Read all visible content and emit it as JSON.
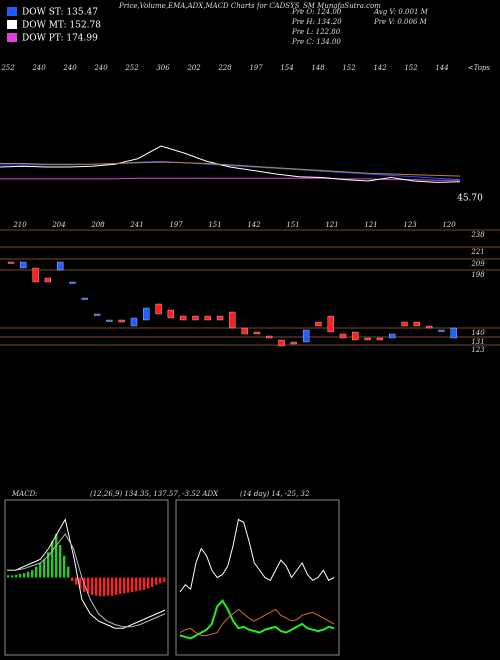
{
  "title": "Price,Volume,EMA,ADX,MACD Charts for CADSYS_SM MunafaSutra.com",
  "legend": [
    {
      "label": "DOW ST: 135.47",
      "color": "#1e5cff"
    },
    {
      "label": "DOW MT: 152.78",
      "color": "#ffffff"
    },
    {
      "label": "DOW PT: 174.99",
      "color": "#e040e0"
    }
  ],
  "info": [
    "Pre  O: 124.00",
    "Pre  H: 134.20",
    "Pre  L: 122.80",
    "Pre  C: 134.00"
  ],
  "info2": [
    "Avg V: 0.001 M",
    "Pre  V: 0.006 M"
  ],
  "chart_data": [
    {
      "type": "candlestick",
      "tops": [
        252,
        240,
        240,
        240,
        252,
        306,
        202,
        228,
        197,
        154,
        148,
        152,
        142,
        152,
        144
      ],
      "tops_label": "<Tops",
      "bottoms": [
        210,
        204,
        208,
        241,
        197,
        151,
        142,
        151,
        121,
        121,
        123,
        120
      ],
      "ylim": [
        98,
        243
      ],
      "yticks": [
        238,
        221,
        209,
        198,
        140,
        131,
        123
      ],
      "up_color": "#2060ff",
      "down_color": "#ff2020",
      "level_color": "#7a4a2a",
      "open": [
        206,
        200,
        200,
        190,
        198,
        186,
        170,
        154,
        148,
        148,
        142,
        148,
        164,
        158,
        152,
        152,
        152,
        152,
        156,
        140,
        136,
        132,
        128,
        126,
        126,
        146,
        152,
        134,
        136,
        130,
        130,
        130,
        146,
        146,
        142,
        138,
        130
      ],
      "close": [
        205,
        206,
        186,
        186,
        206,
        186,
        170,
        154,
        148,
        146,
        150,
        160,
        154,
        150,
        148,
        148,
        148,
        148,
        140,
        134,
        134,
        130,
        122,
        124,
        138,
        142,
        136,
        130,
        128,
        128,
        128,
        134,
        142,
        142,
        140,
        138,
        140
      ]
    },
    {
      "type": "line",
      "annotation": "45.70",
      "ylim": [
        0,
        100
      ],
      "series": [
        {
          "name": "ema-short",
          "color": "#2050ff",
          "values": [
            43,
            43,
            43,
            43,
            44,
            45,
            47,
            48,
            46,
            44,
            42,
            40,
            38,
            36,
            34,
            32,
            30,
            28,
            26,
            24,
            22
          ]
        },
        {
          "name": "ema-long",
          "color": "#e040e0",
          "values": [
            23,
            23,
            23,
            23,
            23,
            23,
            24,
            24,
            24,
            24,
            24,
            24,
            24,
            24,
            24,
            23,
            23,
            22,
            22,
            21,
            21
          ]
        },
        {
          "name": "price",
          "color": "#ffffff",
          "values": [
            40,
            41,
            40,
            40,
            41,
            44,
            52,
            70,
            60,
            48,
            40,
            35,
            30,
            26,
            25,
            22,
            20,
            25,
            20,
            18,
            19
          ]
        },
        {
          "name": "ema-mid",
          "color": "#c08040",
          "values": [
            45,
            45,
            44,
            44,
            44,
            45,
            46,
            47,
            46,
            45,
            43,
            41,
            39,
            37,
            35,
            33,
            31,
            30,
            29,
            28,
            27
          ]
        }
      ]
    },
    {
      "type": "macd",
      "label": "MACD:",
      "title": "(12,26,9) 134.35, 137.57, -3.52 ADX",
      "ylim": [
        -10,
        10
      ],
      "pos_color": "#22cc22",
      "neg_color": "#ff2020",
      "histogram": [
        0.3,
        0.3,
        0.4,
        0.5,
        0.6,
        0.8,
        1.0,
        1.5,
        2.0,
        2.5,
        3.5,
        5,
        6,
        4.5,
        3,
        1.5,
        -0.5,
        -1,
        -1.5,
        -2,
        -2.2,
        -2.4,
        -2.5,
        -2.6,
        -2.6,
        -2.5,
        -2.5,
        -2.4,
        -2.3,
        -2.2,
        -2.1,
        -2,
        -1.9,
        -1.8,
        -1.7,
        -1.5,
        -1.3,
        -1.0,
        -0.8,
        -0.6
      ],
      "series": [
        {
          "name": "macd",
          "color": "#ffffff",
          "values": [
            1,
            1,
            1.5,
            2,
            2.5,
            4,
            6,
            8,
            3,
            -3,
            -5,
            -6,
            -6.5,
            -7,
            -7,
            -6.5,
            -6,
            -5.5,
            -5,
            -4.5
          ]
        },
        {
          "name": "signal",
          "color": "#bbbbbb",
          "values": [
            1,
            1,
            1.2,
            1.6,
            2,
            3,
            4.5,
            6,
            4,
            0,
            -3,
            -5,
            -6,
            -6.5,
            -6.8,
            -6.8,
            -6.5,
            -6,
            -5.5,
            -5
          ]
        }
      ]
    },
    {
      "type": "adx",
      "title": "(14 day) 14, -25, 32",
      "ylim": [
        0,
        100
      ],
      "series": [
        {
          "name": "adx",
          "color": "#ffffff",
          "values": [
            40,
            45,
            42,
            60,
            70,
            65,
            55,
            50,
            52,
            58,
            72,
            90,
            88,
            75,
            60,
            55,
            50,
            48,
            55,
            62,
            58,
            50,
            55,
            60,
            52,
            48,
            50,
            55,
            48,
            50
          ]
        },
        {
          "name": "di-plus",
          "color": "#22ee22",
          "values": [
            10,
            9,
            8,
            10,
            12,
            14,
            18,
            30,
            34,
            28,
            20,
            15,
            16,
            14,
            13,
            12,
            14,
            15,
            16,
            13,
            12,
            14,
            16,
            18,
            15,
            14,
            13,
            14,
            16,
            15
          ]
        },
        {
          "name": "di-minus",
          "color": "#d07020",
          "values": [
            12,
            14,
            15,
            12,
            10,
            10,
            11,
            12,
            18,
            22,
            25,
            28,
            25,
            22,
            20,
            22,
            24,
            26,
            28,
            24,
            22,
            20,
            21,
            24,
            25,
            26,
            24,
            22,
            20,
            18
          ]
        }
      ]
    }
  ]
}
